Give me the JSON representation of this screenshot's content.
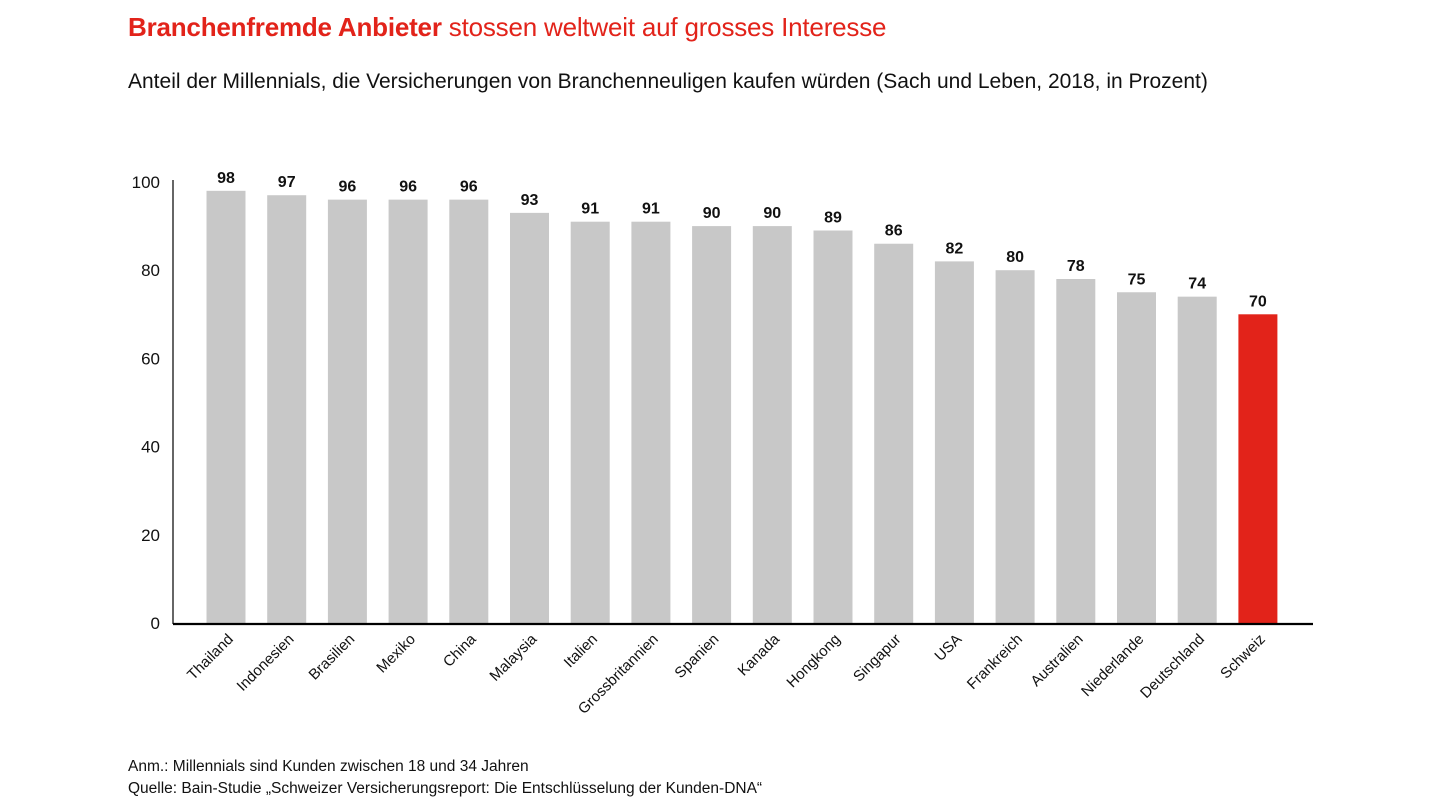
{
  "header": {
    "title_bold": "Branchenfremde Anbieter",
    "title_rest": " stossen weltweit auf grosses Interesse",
    "subtitle": "Anteil der Millennials, die Versicherungen von Branchenneuligen kaufen würden (Sach und Leben, 2018, in Prozent)"
  },
  "notes": {
    "annotation": "Anm.: Millennials sind Kunden zwischen 18 und 34 Jahren",
    "source": "Quelle: Bain-Studie „Schweizer Versicherungsreport: Die Entschlüsselung der Kunden-DNA“"
  },
  "colors": {
    "accent": "#e2231a",
    "bar": "#c8c8c8",
    "axis": "#000000"
  },
  "chart_data": {
    "type": "bar",
    "title": "Branchenfremde Anbieter stossen weltweit auf grosses Interesse",
    "subtitle": "Anteil der Millennials, die Versicherungen von Branchenneuligen kaufen würden (Sach und Leben, 2018, in Prozent)",
    "categories": [
      "Thailand",
      "Indonesien",
      "Brasilien",
      "Mexiko",
      "China",
      "Malaysia",
      "Italien",
      "Grossbritannien",
      "Spanien",
      "Kanada",
      "Hongkong",
      "Singapur",
      "USA",
      "Frankreich",
      "Australien",
      "Niederlande",
      "Deutschland",
      "Schweiz"
    ],
    "values": [
      98,
      97,
      96,
      96,
      96,
      93,
      91,
      91,
      90,
      90,
      89,
      86,
      82,
      80,
      78,
      75,
      74,
      70
    ],
    "highlight": "Schweiz",
    "ylim": [
      0,
      100
    ],
    "yticks": [
      0,
      20,
      40,
      60,
      80,
      100
    ],
    "grid": false,
    "data_labels": true,
    "xlabel": "",
    "ylabel": ""
  }
}
